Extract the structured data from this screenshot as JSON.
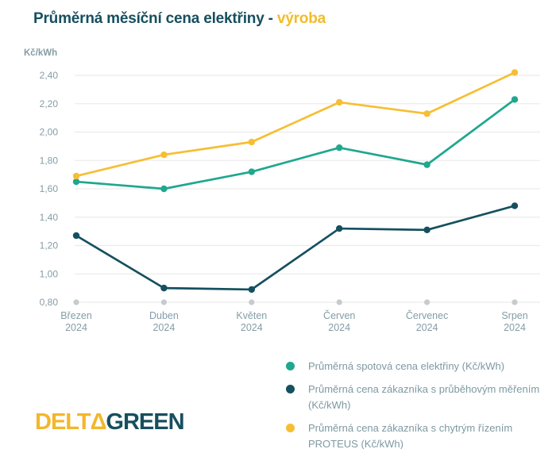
{
  "title": {
    "text": "Průměrná měsíční cena elektřiny -",
    "highlight": "výroba"
  },
  "y_axis": {
    "unit": "Kč/kWh"
  },
  "chart_data": {
    "type": "line",
    "categories": [
      "Březen",
      "Duben",
      "Květen",
      "Červen",
      "Červenec",
      "Srpen"
    ],
    "category_year": "2024",
    "ylim": [
      0.8,
      2.4
    ],
    "ytick_step": 0.2,
    "ytick_labels": [
      "0,80",
      "1,00",
      "1,20",
      "1,40",
      "1,60",
      "1,80",
      "2,00",
      "2,20",
      "2,40"
    ],
    "grid": true,
    "legend_position": "bottom-right",
    "series": [
      {
        "name": "Průměrná spotová cena elektřiny (Kč/kWh)",
        "color": "#1FA78F",
        "values": [
          1.65,
          1.6,
          1.72,
          1.89,
          1.77,
          2.23
        ]
      },
      {
        "name": "Průměrná cena zákazníka s průběhovým měřením (Kč/kWh)",
        "color": "#14505F",
        "values": [
          1.27,
          0.9,
          0.89,
          1.32,
          1.31,
          1.48
        ]
      },
      {
        "name": "Průměrná cena zákazníka s chytrým řízením PROTEUS (Kč/kWh)",
        "color": "#F7BE33",
        "values": [
          1.69,
          1.84,
          1.93,
          2.21,
          2.13,
          2.42
        ]
      }
    ]
  },
  "logo": {
    "part1": "DELT",
    "delta": "Δ",
    "part2": "GREEN"
  },
  "colors": {
    "title": "#174F5E",
    "highlight": "#F2BC2B",
    "axis_text": "#849DA6",
    "gridline": "#ECECEC",
    "baseline_dot": "#C6CBCE",
    "background": "#FFFFFF"
  }
}
